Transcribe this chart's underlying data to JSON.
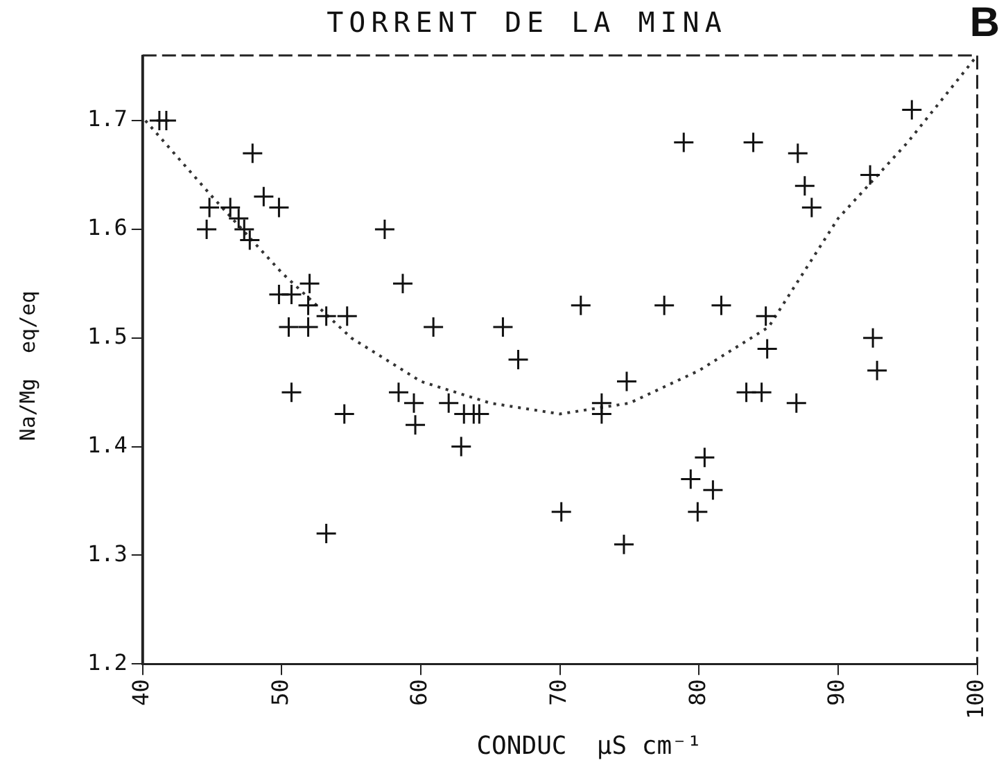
{
  "chart_data": {
    "type": "scatter",
    "title": "TORRENT DE LA MINA",
    "xlabel": "CONDUC  µS cm⁻¹",
    "ylabel": "Na/Mg  eq/eq",
    "annotations": [
      "B"
    ],
    "xlim": [
      40,
      100
    ],
    "xticks": [
      40,
      50,
      60,
      70,
      80,
      90,
      100
    ],
    "ylim": [
      1.2,
      1.76
    ],
    "yticks": [
      1.2,
      1.3,
      1.4,
      1.5,
      1.6,
      1.7
    ],
    "grid": false,
    "legend": false,
    "marker": "cross",
    "series": [
      {
        "color": "#111111",
        "x": [
          41.2,
          41.7,
          44.8,
          44.6,
          46.3,
          46.9,
          47.3,
          47.7,
          47.9,
          48.7,
          49.8,
          49.8,
          50.7,
          50.5,
          51.9,
          51.9,
          52.0,
          53.2,
          50.7,
          54.7,
          54.5,
          53.2,
          57.4,
          58.7,
          60.9,
          58.4,
          59.5,
          59.6,
          62.9,
          63.1,
          63.8,
          62.0,
          64.2,
          65.9,
          67.0,
          70.1,
          71.5,
          73.0,
          73.0,
          74.6,
          74.8,
          77.5,
          78.9,
          79.4,
          79.9,
          80.4,
          81.0,
          81.6,
          83.9,
          84.8,
          84.9,
          84.5,
          83.4,
          87.1,
          87.6,
          88.1,
          87.0,
          92.3,
          92.5,
          92.8,
          95.3
        ],
        "values": [
          1.7,
          1.7,
          1.62,
          1.6,
          1.62,
          1.61,
          1.6,
          1.59,
          1.67,
          1.63,
          1.62,
          1.54,
          1.54,
          1.51,
          1.51,
          1.53,
          1.55,
          1.52,
          1.45,
          1.52,
          1.43,
          1.32,
          1.6,
          1.55,
          1.51,
          1.45,
          1.44,
          1.42,
          1.4,
          1.43,
          1.43,
          1.44,
          1.43,
          1.51,
          1.48,
          1.34,
          1.53,
          1.43,
          1.44,
          1.31,
          1.46,
          1.53,
          1.68,
          1.37,
          1.34,
          1.39,
          1.36,
          1.53,
          1.68,
          1.52,
          1.49,
          1.45,
          1.45,
          1.67,
          1.64,
          1.62,
          1.44,
          1.65,
          1.5,
          1.47,
          1.71
        ]
      },
      {
        "type": "line",
        "color": "#333333",
        "line_style": "dotted",
        "marker": "none",
        "x": [
          40.2,
          45,
          50,
          55,
          60,
          65,
          70,
          75,
          80,
          85,
          90,
          95,
          100
        ],
        "values": [
          1.7,
          1.63,
          1.56,
          1.5,
          1.46,
          1.44,
          1.43,
          1.44,
          1.47,
          1.51,
          1.61,
          1.68,
          1.76
        ]
      }
    ]
  }
}
